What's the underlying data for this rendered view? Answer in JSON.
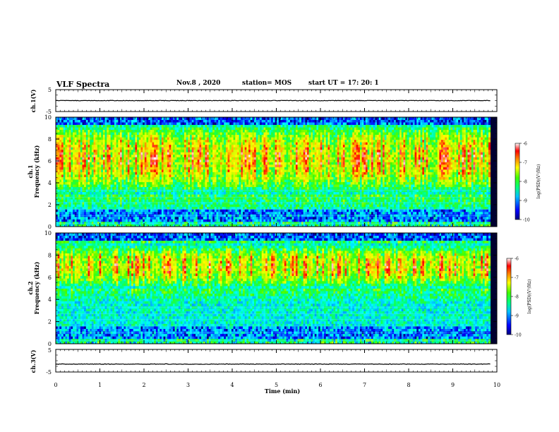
{
  "header": {
    "title": "VLF Spectra",
    "date": "Nov.8 , 2020",
    "station": "station= MOS",
    "start_time": "start UT = 17: 20: 1"
  },
  "colors": {
    "spectrogram_scale": [
      "#000080",
      "#0000ff",
      "#00a0ff",
      "#00ffff",
      "#00ff80",
      "#40ff00",
      "#c0ff00",
      "#ffff00",
      "#ffa000",
      "#ff0000",
      "#ffffff"
    ]
  },
  "chart_data": [
    {
      "type": "line",
      "name": "waveform-ch1",
      "ylabel": "ch.1(V)",
      "ylim": [
        -5,
        5
      ],
      "yticks": [
        "5",
        "-5"
      ],
      "y_value": 0,
      "xlim": [
        0,
        10
      ]
    },
    {
      "type": "heatmap",
      "name": "spectrogram-ch1",
      "ylabel_channel": "ch.1",
      "ylabel": "Frequency (kHz)",
      "ylim": [
        0,
        10
      ],
      "yticks": [
        "0",
        "2",
        "4",
        "6",
        "8",
        "10"
      ],
      "xlim": [
        0,
        10
      ],
      "data_end_min": 9.85,
      "intense_band_khz": [
        3,
        9.5
      ],
      "colorbar": {
        "label": "log(PSD)(V²/Hz)",
        "range": [
          -10,
          -6
        ],
        "ticks": [
          "-6",
          "-7",
          "-8",
          "-9",
          "-10"
        ]
      }
    },
    {
      "type": "heatmap",
      "name": "spectrogram-ch2",
      "ylabel_channel": "ch.2",
      "ylabel": "Frequency (kHz)",
      "ylim": [
        0,
        10
      ],
      "yticks": [
        "0",
        "2",
        "4",
        "6",
        "8",
        "10"
      ],
      "xlim": [
        0,
        10
      ],
      "data_end_min": 9.85,
      "intense_band_khz": [
        5,
        9
      ],
      "colorbar": {
        "label": "log(PSD)(V²/Hz)",
        "range": [
          -10,
          -6
        ],
        "ticks": [
          "-6",
          "-7",
          "-8",
          "-9",
          "-10"
        ]
      }
    },
    {
      "type": "line",
      "name": "waveform-ch3",
      "ylabel": "ch.3(V)",
      "ylim": [
        -5,
        5
      ],
      "yticks": [
        "5",
        "-5"
      ],
      "y_value": -1.5,
      "xlim": [
        0,
        10
      ],
      "xlabel": "Time (min)",
      "xticks": [
        "0",
        "1",
        "2",
        "3",
        "4",
        "5",
        "6",
        "7",
        "8",
        "9",
        "10"
      ]
    }
  ]
}
